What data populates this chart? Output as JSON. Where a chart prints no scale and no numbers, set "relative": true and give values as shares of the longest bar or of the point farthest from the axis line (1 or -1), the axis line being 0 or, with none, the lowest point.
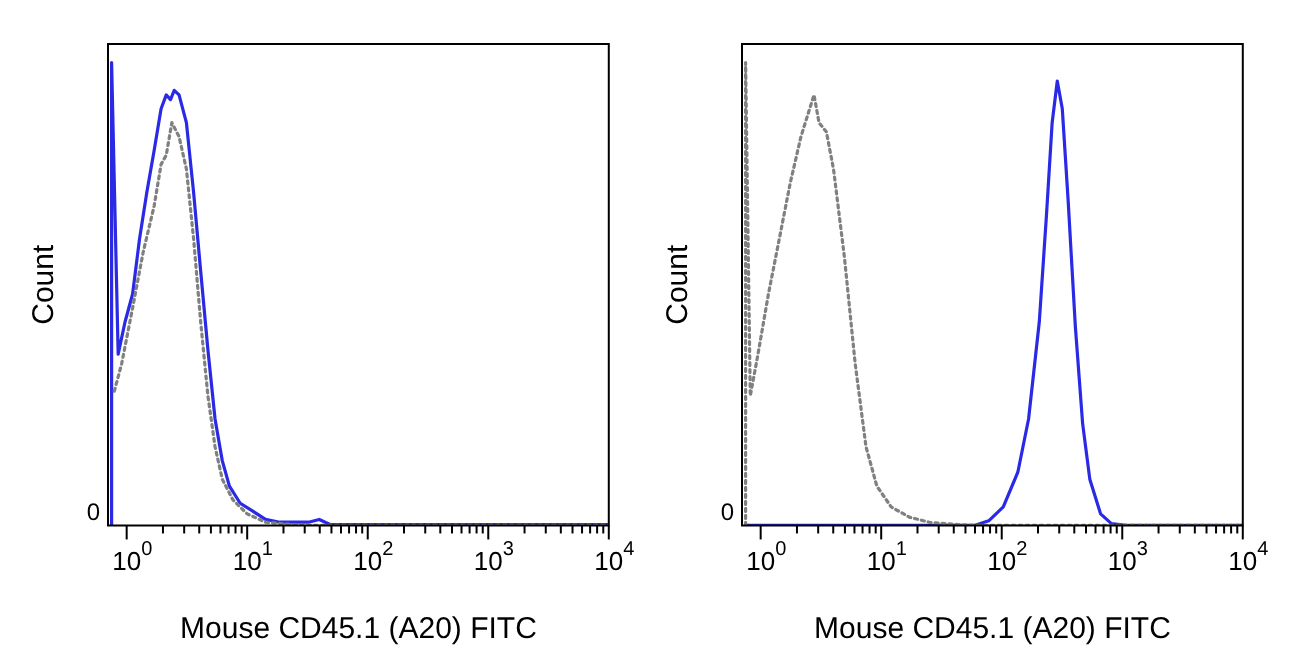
{
  "chart_data": [
    {
      "type": "line",
      "xlabel": "Mouse CD45.1 (A20) FITC",
      "ylabel": "Count",
      "relative": true,
      "log": "x",
      "marker": "none",
      "annotations": [
        "0"
      ],
      "xlim": [
        0.72,
        10000
      ],
      "xticks": [
        {
          "value": 1,
          "label": "10$^{0}$"
        },
        {
          "value": 2,
          "label": null
        },
        {
          "value": 3,
          "label": null
        },
        {
          "value": 4,
          "label": null
        },
        {
          "value": 5,
          "label": null
        },
        {
          "value": 6,
          "label": null
        },
        {
          "value": 7,
          "label": null
        },
        {
          "value": 8,
          "label": null
        },
        {
          "value": 9,
          "label": null
        },
        {
          "value": 10,
          "label": "10$^{1}$"
        },
        {
          "value": 20,
          "label": null
        },
        {
          "value": 30,
          "label": null
        },
        {
          "value": 40,
          "label": null
        },
        {
          "value": 50,
          "label": null
        },
        {
          "value": 60,
          "label": null
        },
        {
          "value": 70,
          "label": null
        },
        {
          "value": 80,
          "label": null
        },
        {
          "value": 90,
          "label": null
        },
        {
          "value": 100,
          "label": "10$^{2}$"
        },
        {
          "value": 200,
          "label": null
        },
        {
          "value": 300,
          "label": null
        },
        {
          "value": 400,
          "label": null
        },
        {
          "value": 500,
          "label": null
        },
        {
          "value": 600,
          "label": null
        },
        {
          "value": 700,
          "label": null
        },
        {
          "value": 800,
          "label": null
        },
        {
          "value": 900,
          "label": null
        },
        {
          "value": 1000,
          "label": "10$^{3}$"
        },
        {
          "value": 2000,
          "label": null
        },
        {
          "value": 3000,
          "label": null
        },
        {
          "value": 4000,
          "label": null
        },
        {
          "value": 5000,
          "label": null
        },
        {
          "value": 6000,
          "label": null
        },
        {
          "value": 7000,
          "label": null
        },
        {
          "value": 8000,
          "label": null
        },
        {
          "value": 9000,
          "label": null
        },
        {
          "value": 10000,
          "label": "10$^{4}$"
        }
      ],
      "series": [
        {
          "color": "#808080",
          "line_style": "dotted",
          "x": [
            0.79,
            0.91,
            1.12,
            1.37,
            1.69,
            1.93,
            2.13,
            2.37,
            2.72,
            3.13,
            3.59,
            4.11,
            4.72,
            5.41,
            6.21,
            7.63,
            10.0,
            14.2,
            28.1,
            10000
          ],
          "values": [
            0.29,
            0.35,
            0.47,
            0.59,
            0.69,
            0.78,
            0.8,
            0.87,
            0.84,
            0.77,
            0.62,
            0.44,
            0.28,
            0.17,
            0.1,
            0.055,
            0.025,
            0.007,
            0,
            0
          ]
        },
        {
          "color": "#2a2ae6",
          "line_style": "solid",
          "x": [
            0.75,
            0.75,
            0.85,
            0.97,
            1.12,
            1.28,
            1.47,
            1.69,
            1.93,
            2.13,
            2.31,
            2.48,
            2.72,
            3.13,
            3.59,
            4.11,
            4.72,
            5.41,
            6.21,
            7.12,
            8.75,
            10.8,
            14.2,
            18.6,
            32.3,
            39.6,
            48.7,
            96.8,
            10000
          ],
          "values": [
            0,
            1.0,
            0.37,
            0.44,
            0.5,
            0.62,
            0.72,
            0.81,
            0.9,
            0.93,
            0.92,
            0.94,
            0.93,
            0.87,
            0.72,
            0.55,
            0.38,
            0.23,
            0.14,
            0.085,
            0.048,
            0.033,
            0.013,
            0.007,
            0.007,
            0.013,
            0.002,
            0.002,
            0.002
          ]
        }
      ]
    },
    {
      "type": "line",
      "xlabel": "Mouse CD45.1 (A20) FITC",
      "ylabel": "Count",
      "relative": true,
      "log": "x",
      "marker": "none",
      "annotations": [
        "0"
      ],
      "xlim": [
        0.72,
        10000
      ],
      "xticks": [
        {
          "value": 1,
          "label": "10$^{0}$"
        },
        {
          "value": 2,
          "label": null
        },
        {
          "value": 3,
          "label": null
        },
        {
          "value": 4,
          "label": null
        },
        {
          "value": 5,
          "label": null
        },
        {
          "value": 6,
          "label": null
        },
        {
          "value": 7,
          "label": null
        },
        {
          "value": 8,
          "label": null
        },
        {
          "value": 9,
          "label": null
        },
        {
          "value": 10,
          "label": "10$^{1}$"
        },
        {
          "value": 20,
          "label": null
        },
        {
          "value": 30,
          "label": null
        },
        {
          "value": 40,
          "label": null
        },
        {
          "value": 50,
          "label": null
        },
        {
          "value": 60,
          "label": null
        },
        {
          "value": 70,
          "label": null
        },
        {
          "value": 80,
          "label": null
        },
        {
          "value": 90,
          "label": null
        },
        {
          "value": 100,
          "label": "10$^{2}$"
        },
        {
          "value": 200,
          "label": null
        },
        {
          "value": 300,
          "label": null
        },
        {
          "value": 400,
          "label": null
        },
        {
          "value": 500,
          "label": null
        },
        {
          "value": 600,
          "label": null
        },
        {
          "value": 700,
          "label": null
        },
        {
          "value": 800,
          "label": null
        },
        {
          "value": 900,
          "label": null
        },
        {
          "value": 1000,
          "label": "10$^{3}$"
        },
        {
          "value": 2000,
          "label": null
        },
        {
          "value": 3000,
          "label": null
        },
        {
          "value": 4000,
          "label": null
        },
        {
          "value": 5000,
          "label": null
        },
        {
          "value": 6000,
          "label": null
        },
        {
          "value": 7000,
          "label": null
        },
        {
          "value": 8000,
          "label": null
        },
        {
          "value": 9000,
          "label": null
        },
        {
          "value": 10000,
          "label": "10$^{4}$"
        }
      ],
      "series": [
        {
          "color": "#808080",
          "line_style": "dotted",
          "x": [
            0.75,
            0.75,
            0.82,
            0.95,
            1.16,
            1.43,
            1.76,
            2.16,
            2.48,
            2.77,
            3.05,
            3.51,
            4.02,
            4.95,
            6.08,
            7.48,
            9.2,
            12.1,
            17.1,
            25.9,
            59.2,
            10000
          ],
          "values": [
            0,
            1.0,
            0.28,
            0.37,
            0.5,
            0.62,
            0.74,
            0.84,
            0.89,
            0.93,
            0.87,
            0.85,
            0.77,
            0.58,
            0.35,
            0.17,
            0.085,
            0.04,
            0.018,
            0.006,
            0,
            0
          ]
        },
        {
          "color": "#2a2ae6",
          "line_style": "solid",
          "x": [
            0.75,
            59.2,
            78,
            103,
            136,
            167,
            205,
            235,
            262,
            289,
            318,
            356,
            408,
            469,
            538,
            661,
            813,
            1072,
            10000
          ],
          "values": [
            0,
            0,
            0.01,
            0.04,
            0.115,
            0.23,
            0.44,
            0.67,
            0.87,
            0.96,
            0.9,
            0.7,
            0.43,
            0.22,
            0.1,
            0.025,
            0.004,
            0,
            0
          ]
        }
      ]
    }
  ]
}
